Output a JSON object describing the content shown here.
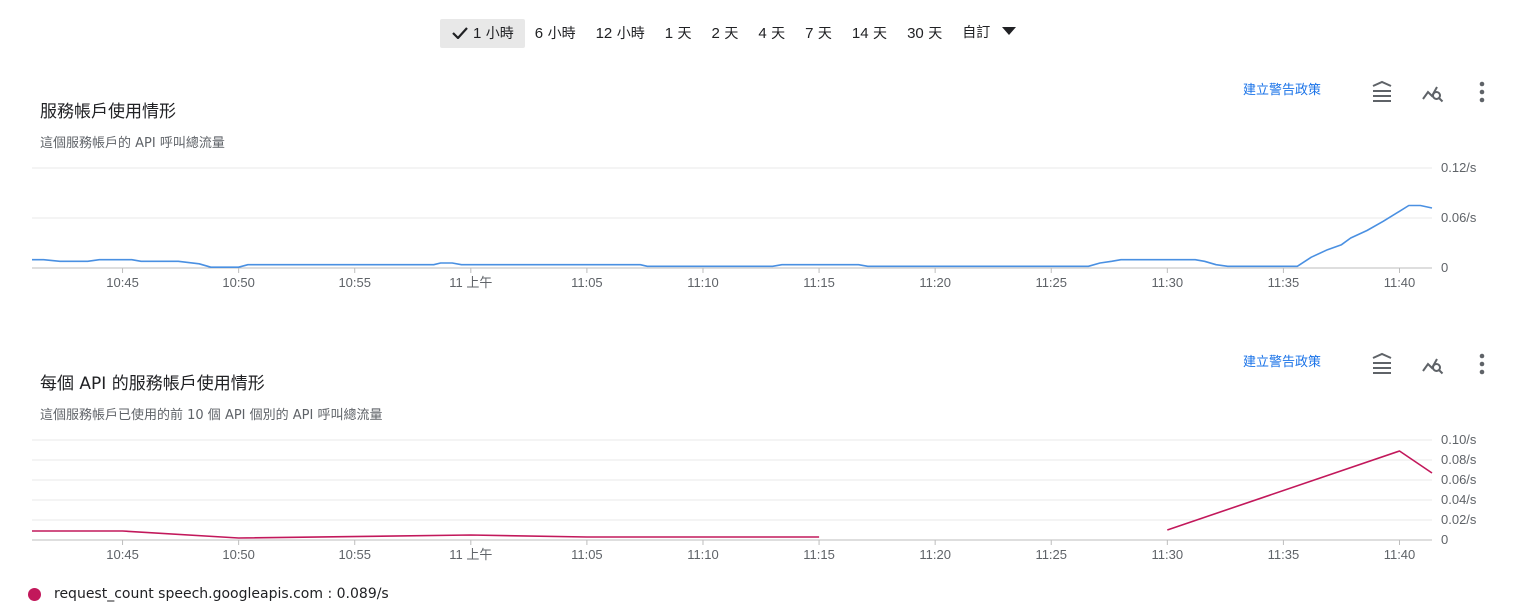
{
  "time_range": {
    "options": [
      {
        "num": "1",
        "unit": "小時",
        "selected": true
      },
      {
        "num": "6",
        "unit": "小時",
        "selected": false
      },
      {
        "num": "12",
        "unit": "小時",
        "selected": false
      },
      {
        "num": "1",
        "unit": "天",
        "selected": false
      },
      {
        "num": "2",
        "unit": "天",
        "selected": false
      },
      {
        "num": "4",
        "unit": "天",
        "selected": false
      },
      {
        "num": "7",
        "unit": "天",
        "selected": false
      },
      {
        "num": "14",
        "unit": "天",
        "selected": false
      },
      {
        "num": "30",
        "unit": "天",
        "selected": false
      }
    ],
    "custom_label": "自訂"
  },
  "icons": [
    "check-icon",
    "caret-down-icon",
    "legend-toggle-icon",
    "explore-chart-icon",
    "more-vert-icon"
  ],
  "chart_data": [
    {
      "type": "line",
      "title": "服務帳戶使用情形",
      "subtitle": "這個服務帳戶的 API 呼叫總流量",
      "alert_link": "建立警告政策",
      "x_ticks": [
        "10:45",
        "10:50",
        "10:55",
        "11 上午",
        "11:05",
        "11:10",
        "11:15",
        "11:20",
        "11:25",
        "11:30",
        "11:35",
        "11:40"
      ],
      "x_tick_minutes": [
        45,
        50,
        55,
        60,
        65,
        70,
        75,
        80,
        85,
        90,
        95,
        100
      ],
      "x_range_minutes": [
        41.1,
        101.4
      ],
      "y_ticks": [
        "0",
        "0.06/s",
        "0.12/s"
      ],
      "y_tick_values": [
        0,
        0.06,
        0.12
      ],
      "ylim": [
        0,
        0.12
      ],
      "grid": true,
      "color": "#4a90e2",
      "series": [
        {
          "points": [
            [
              41.1,
              0.01
            ],
            [
              41.6,
              0.01
            ],
            [
              42.3,
              0.008
            ],
            [
              43.5,
              0.008
            ],
            [
              44.0,
              0.01
            ],
            [
              44.5,
              0.01
            ],
            [
              45.4,
              0.01
            ],
            [
              45.8,
              0.008
            ],
            [
              47.4,
              0.008
            ],
            [
              48.3,
              0.005
            ],
            [
              48.8,
              0.001
            ],
            [
              50.0,
              0.001
            ],
            [
              50.4,
              0.004
            ],
            [
              58.4,
              0.004
            ],
            [
              58.7,
              0.006
            ],
            [
              59.2,
              0.006
            ],
            [
              59.6,
              0.004
            ],
            [
              67.3,
              0.004
            ],
            [
              67.6,
              0.002
            ],
            [
              73.0,
              0.002
            ],
            [
              73.4,
              0.004
            ],
            [
              76.7,
              0.004
            ],
            [
              77.1,
              0.002
            ],
            [
              86.6,
              0.002
            ],
            [
              87.1,
              0.006
            ],
            [
              87.6,
              0.008
            ],
            [
              88.0,
              0.01
            ],
            [
              91.2,
              0.01
            ],
            [
              91.6,
              0.008
            ],
            [
              92.1,
              0.004
            ],
            [
              92.6,
              0.002
            ],
            [
              95.6,
              0.002
            ],
            [
              96.2,
              0.013
            ],
            [
              96.9,
              0.022
            ],
            [
              97.5,
              0.028
            ],
            [
              97.9,
              0.036
            ],
            [
              98.6,
              0.045
            ],
            [
              99.3,
              0.056
            ],
            [
              100.0,
              0.068
            ],
            [
              100.4,
              0.075
            ],
            [
              100.9,
              0.075
            ],
            [
              101.4,
              0.072
            ]
          ]
        }
      ]
    },
    {
      "type": "line",
      "title": "每個 API 的服務帳戶使用情形",
      "subtitle": "這個服務帳戶已使用的前 10 個 API 個別的 API 呼叫總流量",
      "alert_link": "建立警告政策",
      "x_ticks": [
        "10:45",
        "10:50",
        "10:55",
        "11 上午",
        "11:05",
        "11:10",
        "11:15",
        "11:20",
        "11:25",
        "11:30",
        "11:35",
        "11:40"
      ],
      "x_tick_minutes": [
        45,
        50,
        55,
        60,
        65,
        70,
        75,
        80,
        85,
        90,
        95,
        100
      ],
      "x_range_minutes": [
        41.1,
        101.4
      ],
      "y_ticks": [
        "0",
        "0.02/s",
        "0.04/s",
        "0.06/s",
        "0.08/s",
        "0.10/s"
      ],
      "y_tick_values": [
        0,
        0.02,
        0.04,
        0.06,
        0.08,
        0.1
      ],
      "ylim": [
        0,
        0.1
      ],
      "grid": true,
      "color": "#c2185b",
      "series": [
        {
          "name": "request_count speech.googleapis.com",
          "value_label": "0.089/s",
          "segments": [
            [
              [
                41.1,
                0.009
              ],
              [
                45.0,
                0.009
              ],
              [
                50.0,
                0.002
              ],
              [
                60.0,
                0.005
              ],
              [
                65.0,
                0.003
              ],
              [
                75.0,
                0.003
              ]
            ],
            [
              [
                90.0,
                0.01
              ],
              [
                100.0,
                0.089
              ],
              [
                101.4,
                0.067
              ]
            ]
          ]
        }
      ]
    }
  ]
}
